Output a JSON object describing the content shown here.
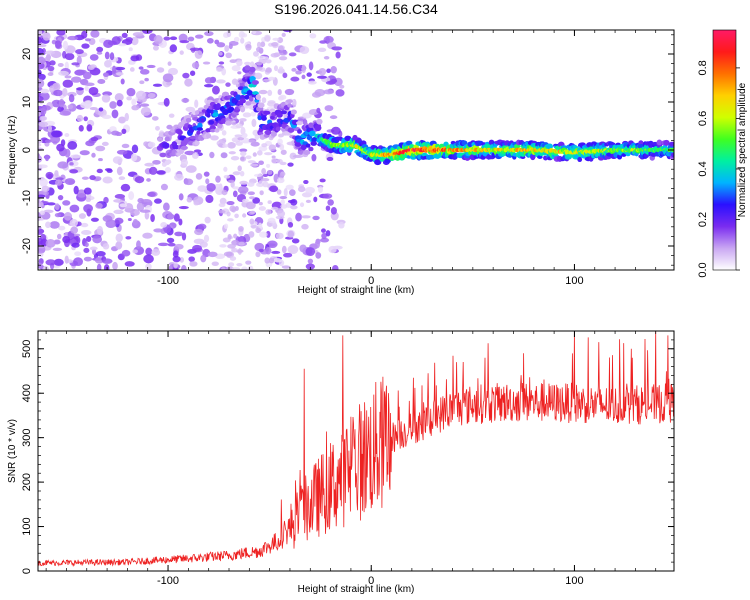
{
  "title": "S196.2026.041.14.56.C34",
  "chart_data": [
    {
      "type": "heatmap",
      "name": "spectrogram",
      "xlabel": "Height of straight line (km)",
      "ylabel": "Frequency (Hz)",
      "xlim": [
        -164,
        149
      ],
      "ylim": [
        -25,
        25
      ],
      "xticks": [
        -100,
        0,
        100
      ],
      "yticks": [
        -20,
        -10,
        0,
        10,
        20
      ],
      "xtick_labels": [
        "-100",
        "0",
        "100"
      ],
      "ytick_labels": [
        "-20",
        "-10",
        "0",
        "10",
        "20"
      ],
      "ridge": [
        {
          "x": -104,
          "f": 0,
          "amp": 0.2
        },
        {
          "x": -95,
          "f": 2,
          "amp": 0.25
        },
        {
          "x": -85,
          "f": 5,
          "amp": 0.3
        },
        {
          "x": -78,
          "f": 7,
          "amp": 0.35
        },
        {
          "x": -70,
          "f": 9,
          "amp": 0.3
        },
        {
          "x": -63,
          "f": 12,
          "amp": 0.35
        },
        {
          "x": -58,
          "f": 14,
          "amp": 0.4
        },
        {
          "x": -55,
          "f": 6,
          "amp": 0.35
        },
        {
          "x": -48,
          "f": 6,
          "amp": 0.3
        },
        {
          "x": -40,
          "f": 7,
          "amp": 0.3
        },
        {
          "x": -35,
          "f": 2,
          "amp": 0.35
        },
        {
          "x": -28,
          "f": 3,
          "amp": 0.4
        },
        {
          "x": -18,
          "f": 1,
          "amp": 0.55
        },
        {
          "x": -8,
          "f": 1,
          "amp": 0.6
        },
        {
          "x": 0,
          "f": -1,
          "amp": 0.55
        },
        {
          "x": 10,
          "f": -1,
          "amp": 0.7
        },
        {
          "x": 20,
          "f": 0,
          "amp": 0.85
        },
        {
          "x": 40,
          "f": 0,
          "amp": 0.7
        },
        {
          "x": 60,
          "f": 0,
          "amp": 0.6
        },
        {
          "x": 80,
          "f": 0,
          "amp": 0.65
        },
        {
          "x": 100,
          "f": -0.5,
          "amp": 0.6
        },
        {
          "x": 120,
          "f": 0,
          "amp": 0.55
        },
        {
          "x": 140,
          "f": 0,
          "amp": 0.5
        },
        {
          "x": 149,
          "f": 0,
          "amp": 0.45
        }
      ],
      "colorbar": {
        "label": "Normalized spectral amplitude",
        "range": [
          0,
          0.95
        ],
        "ticks": [
          0.0,
          0.2,
          0.4,
          0.6,
          0.8
        ],
        "tick_labels": [
          "0.0",
          "0.2",
          "0.4",
          "0.6",
          "0.8"
        ],
        "colors": [
          "#ffffff",
          "#c9a6f2",
          "#7a2cf0",
          "#2a10ff",
          "#00b4ff",
          "#00f0a0",
          "#40ff20",
          "#d0ff00",
          "#ffd000",
          "#ff7000",
          "#ff1a1a",
          "#ff1a66"
        ]
      }
    },
    {
      "type": "line",
      "name": "snr",
      "xlabel": "Height of straight line (km)",
      "ylabel": "SNR (10 * v/v)",
      "xlim": [
        -164,
        149
      ],
      "ylim": [
        0,
        540
      ],
      "xticks": [
        -100,
        0,
        100
      ],
      "yticks": [
        0,
        100,
        200,
        300,
        400,
        500
      ],
      "xtick_labels": [
        "-100",
        "0",
        "100"
      ],
      "ytick_labels": [
        "0",
        "100",
        "200",
        "300",
        "400",
        "500"
      ],
      "color": "#ee2222",
      "baseline": [
        {
          "x": -164,
          "y": 18
        },
        {
          "x": -120,
          "y": 20
        },
        {
          "x": -90,
          "y": 28
        },
        {
          "x": -70,
          "y": 35
        },
        {
          "x": -55,
          "y": 45
        },
        {
          "x": -45,
          "y": 70
        },
        {
          "x": -38,
          "y": 110
        },
        {
          "x": -30,
          "y": 150
        },
        {
          "x": -20,
          "y": 190
        },
        {
          "x": -10,
          "y": 230
        },
        {
          "x": 0,
          "y": 270
        },
        {
          "x": 10,
          "y": 300
        },
        {
          "x": 20,
          "y": 320
        },
        {
          "x": 30,
          "y": 345
        },
        {
          "x": 40,
          "y": 365
        },
        {
          "x": 50,
          "y": 375
        },
        {
          "x": 70,
          "y": 380
        },
        {
          "x": 100,
          "y": 378
        },
        {
          "x": 120,
          "y": 372
        },
        {
          "x": 149,
          "y": 378
        }
      ],
      "peaks": [
        {
          "x": -33,
          "y": 455
        },
        {
          "x": -14,
          "y": 530
        },
        {
          "x": 28,
          "y": 445
        },
        {
          "x": 42,
          "y": 470
        },
        {
          "x": 56,
          "y": 480
        },
        {
          "x": 75,
          "y": 490
        },
        {
          "x": 100,
          "y": 540
        },
        {
          "x": 112,
          "y": 515
        },
        {
          "x": 128,
          "y": 500
        },
        {
          "x": 140,
          "y": 540
        },
        {
          "x": 146,
          "y": 530
        }
      ]
    }
  ]
}
